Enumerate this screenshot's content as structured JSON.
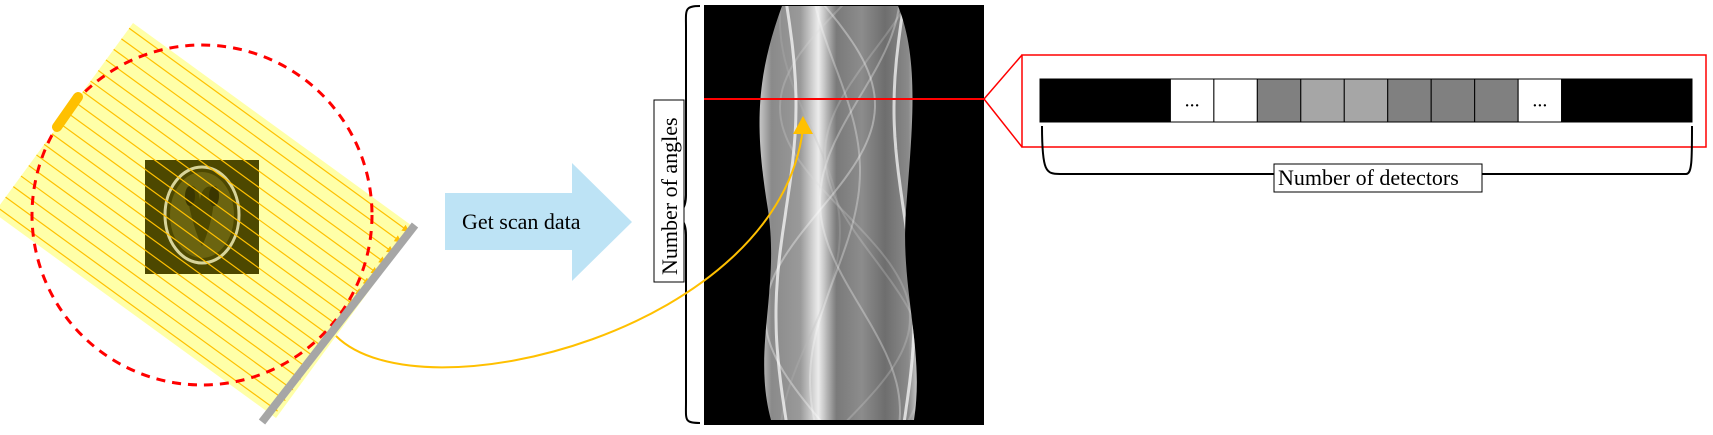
{
  "arrow_label": "Get scan data",
  "angles_label": "Number of angles",
  "detectors_label": "Number of detectors",
  "detector_row": {
    "cells": [
      {
        "type": "solid",
        "color": "#000000"
      },
      {
        "type": "solid",
        "color": "#000000"
      },
      {
        "type": "solid",
        "color": "#000000"
      },
      {
        "type": "ellipsis",
        "color": "#ffffff",
        "text": "..."
      },
      {
        "type": "solid",
        "color": "#ffffff"
      },
      {
        "type": "solid",
        "color": "#808080"
      },
      {
        "type": "solid",
        "color": "#a6a6a6"
      },
      {
        "type": "solid",
        "color": "#a6a6a6"
      },
      {
        "type": "solid",
        "color": "#808080"
      },
      {
        "type": "solid",
        "color": "#808080"
      },
      {
        "type": "solid",
        "color": "#808080"
      },
      {
        "type": "ellipsis",
        "color": "#ffffff",
        "text": "..."
      },
      {
        "type": "solid",
        "color": "#000000"
      },
      {
        "type": "solid",
        "color": "#000000"
      },
      {
        "type": "solid",
        "color": "#000000"
      }
    ]
  },
  "colors": {
    "beam": "#ffff99",
    "ray": "#ffc000",
    "orbit": "#ff0000",
    "detector_bar": "#a6a6a6",
    "source": "#ffc000",
    "phantom_bg": "#4d4800",
    "arrow": "#bde3f5",
    "highlight": "#ff0000",
    "curve": "#ffc000"
  }
}
